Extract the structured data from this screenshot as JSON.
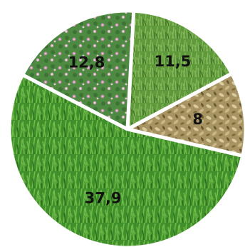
{
  "chart_data": {
    "type": "pie",
    "categories": [
      "11,5",
      "8",
      "37,9",
      "12,8"
    ],
    "values": [
      11.5,
      8,
      37.9,
      12.8
    ],
    "data_labels": [
      "11,5",
      "8",
      "37,9",
      "12,8"
    ],
    "slice_fills": [
      "grass-meadow",
      "dry-straw",
      "green-grass-clover",
      "flowering-red-clover"
    ],
    "colors": {
      "grass-meadow": "#5e9a3c",
      "dry-straw": "#a89462",
      "green-grass-clover": "#3f8f2c",
      "flowering-red-clover": "#4e8a42",
      "separator": "#ffffff"
    },
    "title": "",
    "legend": "none",
    "start_angle_deg": 3,
    "direction": "clockwise"
  }
}
